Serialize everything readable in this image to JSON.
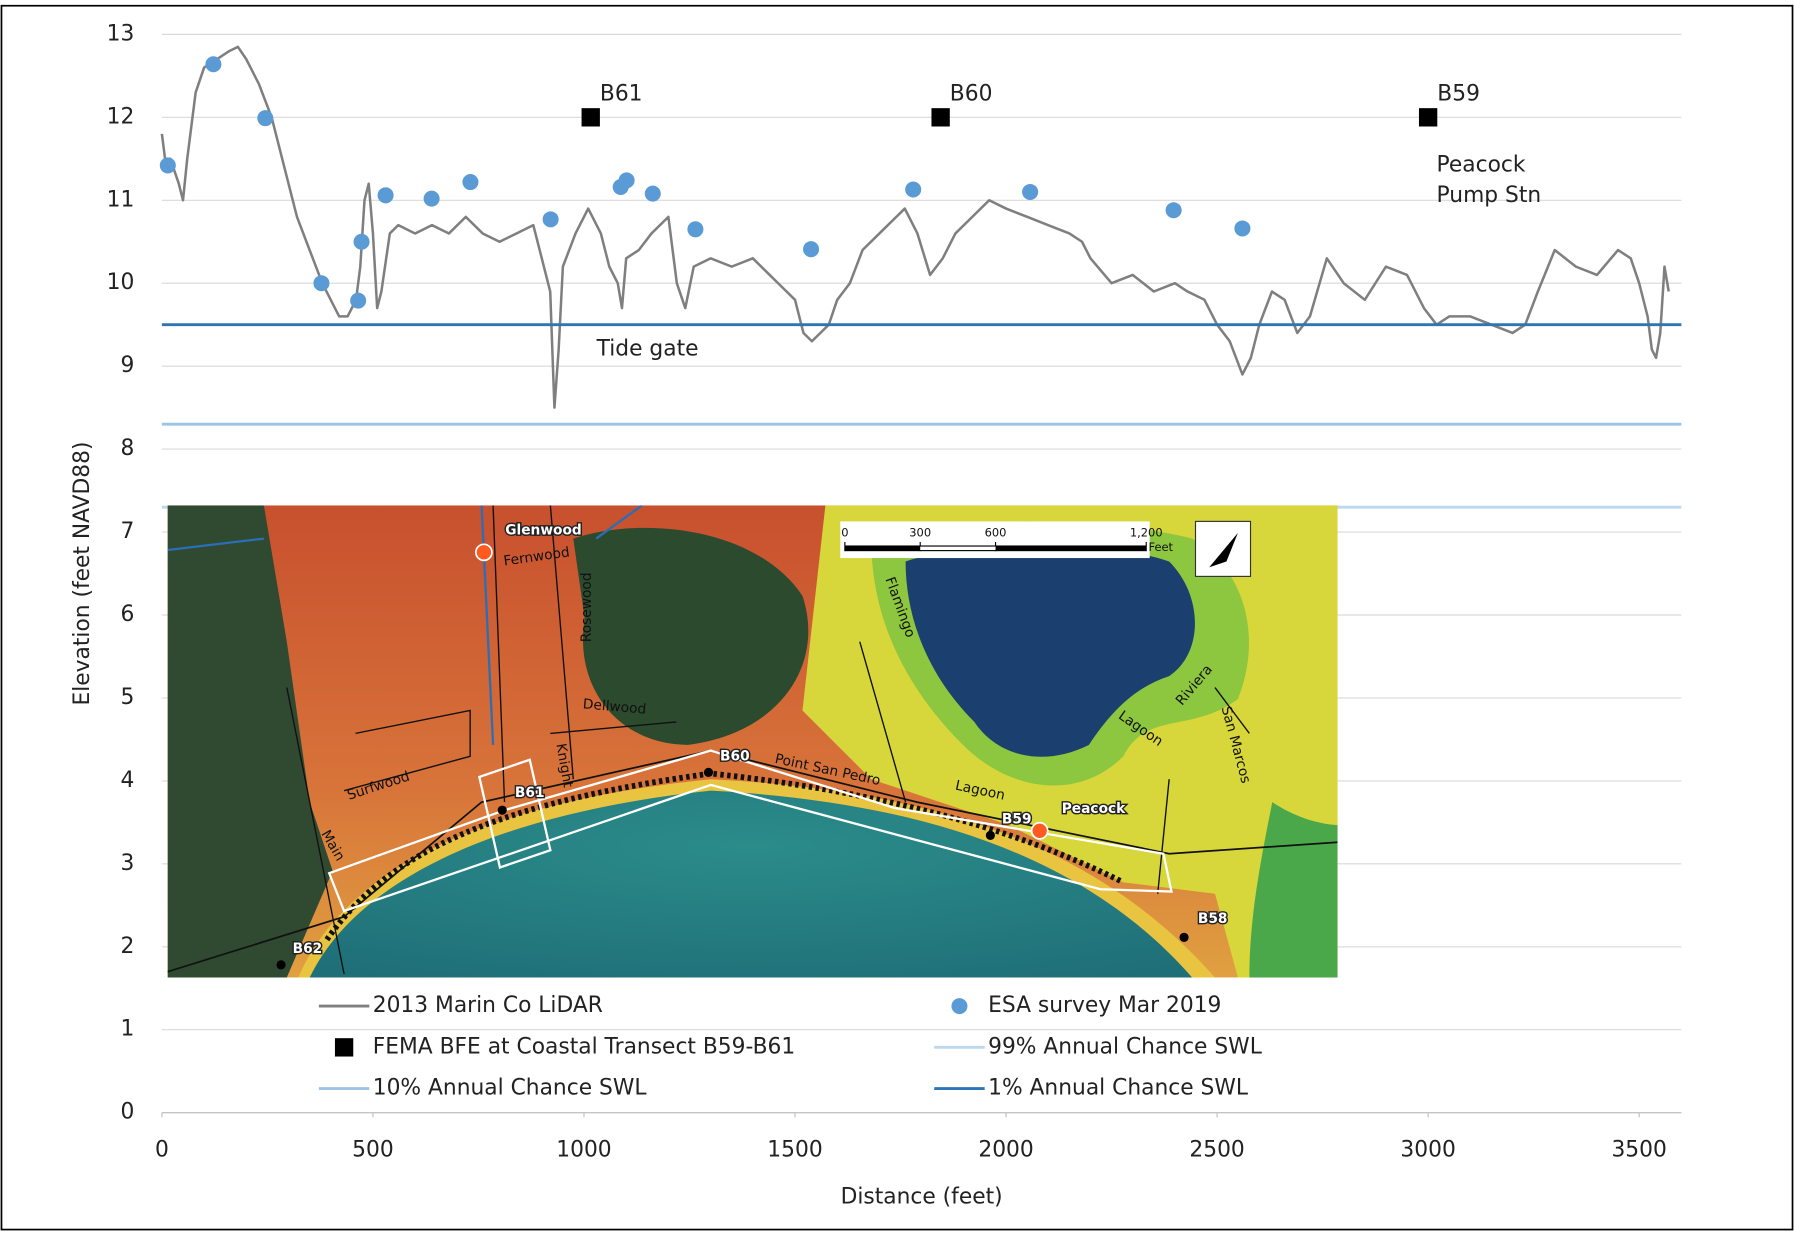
{
  "chart_data": {
    "type": "line",
    "x_label": "Distance (feet)",
    "y_label": "Elevation (feet NAVD88)",
    "xlim": [
      0,
      3600
    ],
    "ylim": [
      0,
      13
    ],
    "xticks": [
      0,
      500,
      1000,
      1500,
      2000,
      2500,
      3000,
      3500
    ],
    "yticks": [
      0,
      1,
      2,
      3,
      4,
      5,
      6,
      7,
      8,
      9,
      10,
      11,
      12,
      13
    ],
    "grid": true,
    "annotations": [
      "Tide gate",
      "Peacock",
      "Pump Stn"
    ],
    "series": [
      {
        "name": "2013 Marin Co LiDAR",
        "kind": "line",
        "color": "#7f7f7f",
        "x": [
          0,
          10,
          20,
          40,
          50,
          60,
          80,
          100,
          130,
          160,
          180,
          200,
          230,
          260,
          290,
          320,
          350,
          380,
          400,
          420,
          440,
          460,
          470,
          480,
          490,
          500,
          510,
          520,
          540,
          560,
          600,
          640,
          680,
          720,
          760,
          800,
          840,
          880,
          900,
          920,
          930,
          940,
          950,
          980,
          1010,
          1040,
          1060,
          1080,
          1090,
          1100,
          1130,
          1160,
          1200,
          1220,
          1240,
          1260,
          1300,
          1350,
          1400,
          1440,
          1460,
          1500,
          1520,
          1540,
          1560,
          1580,
          1600,
          1630,
          1660,
          1700,
          1740,
          1760,
          1790,
          1820,
          1850,
          1880,
          1920,
          1960,
          2000,
          2050,
          2100,
          2150,
          2180,
          2200,
          2250,
          2300,
          2350,
          2400,
          2430,
          2470,
          2500,
          2530,
          2560,
          2580,
          2600,
          2630,
          2660,
          2690,
          2720,
          2760,
          2800,
          2850,
          2900,
          2950,
          2990,
          3020,
          3050,
          3100,
          3150,
          3200,
          3230,
          3260,
          3300,
          3350,
          3400,
          3450,
          3480,
          3500,
          3520,
          3530,
          3540,
          3550,
          3560,
          3570
        ],
        "values": [
          11.8,
          11.4,
          11.5,
          11.2,
          11.0,
          11.5,
          12.3,
          12.6,
          12.7,
          12.8,
          12.85,
          12.7,
          12.4,
          12.0,
          11.4,
          10.8,
          10.4,
          10.0,
          9.8,
          9.6,
          9.6,
          9.8,
          10.2,
          11.0,
          11.2,
          10.6,
          9.7,
          9.9,
          10.6,
          10.7,
          10.6,
          10.7,
          10.6,
          10.8,
          10.6,
          10.5,
          10.6,
          10.7,
          10.3,
          9.9,
          8.5,
          9.2,
          10.2,
          10.6,
          10.9,
          10.6,
          10.2,
          10.0,
          9.7,
          10.3,
          10.4,
          10.6,
          10.8,
          10.0,
          9.7,
          10.2,
          10.3,
          10.2,
          10.3,
          10.1,
          10.0,
          9.8,
          9.4,
          9.3,
          9.4,
          9.5,
          9.8,
          10.0,
          10.4,
          10.6,
          10.8,
          10.9,
          10.6,
          10.1,
          10.3,
          10.6,
          10.8,
          11.0,
          10.9,
          10.8,
          10.7,
          10.6,
          10.5,
          10.3,
          10.0,
          10.1,
          9.9,
          10.0,
          9.9,
          9.8,
          9.5,
          9.3,
          8.9,
          9.1,
          9.5,
          9.9,
          9.8,
          9.4,
          9.6,
          10.3,
          10.0,
          9.8,
          10.2,
          10.1,
          9.7,
          9.5,
          9.6,
          9.6,
          9.5,
          9.4,
          9.5,
          9.9,
          10.4,
          10.2,
          10.1,
          10.4,
          10.3,
          10.0,
          9.6,
          9.2,
          9.1,
          9.4,
          10.2,
          9.9
        ]
      },
      {
        "name": "ESA survey Mar 2019",
        "kind": "scatter",
        "marker": "circle",
        "color": "#5b9bd5",
        "x": [
          14,
          122,
          245,
          378,
          465,
          473,
          530,
          639,
          731,
          921,
          1087,
          1101,
          1163,
          1264,
          1538,
          1780,
          2057,
          2397,
          2560
        ],
        "values": [
          11.42,
          12.64,
          11.99,
          10.0,
          9.79,
          10.5,
          11.06,
          11.02,
          11.22,
          10.77,
          11.16,
          11.24,
          11.08,
          10.65,
          10.41,
          11.13,
          11.1,
          10.88,
          10.66
        ]
      },
      {
        "name": "FEMA BFE at Coastal Transect B59-B61",
        "kind": "scatter",
        "marker": "square",
        "color": "#000000",
        "x": [
          1016,
          1845,
          3000
        ],
        "values": [
          12,
          12,
          12
        ],
        "labels": [
          "B61",
          "B60",
          "B59"
        ]
      },
      {
        "name": "99% Annual Chance SWL",
        "kind": "line",
        "color": "#bdd7ee",
        "x": [
          0,
          3600
        ],
        "values": [
          7.3,
          7.3
        ]
      },
      {
        "name": "10% Annual Chance SWL",
        "kind": "line",
        "color": "#9dc3e6",
        "x": [
          0,
          3600
        ],
        "values": [
          8.3,
          8.3
        ]
      },
      {
        "name": "1% Annual Chance SWL",
        "kind": "line",
        "color": "#2e75b6",
        "x": [
          0,
          3600
        ],
        "values": [
          9.5,
          9.5
        ]
      }
    ]
  },
  "inset_map": {
    "labels": [
      "Glenwood",
      "Fernwood",
      "Rosewood",
      "Dellwood",
      "Knight",
      "Surfwood",
      "Main",
      "B61",
      "B60",
      "B59",
      "Peacock",
      "Point San Pedro",
      "Lagoon",
      "Lagoon",
      "Flamingo",
      "Riviera",
      "San Marcos",
      "B58",
      "B62"
    ],
    "scale_ticks": [
      0,
      300,
      600,
      {
        "value": 1200,
        "label": "1,200"
      }
    ],
    "scale_unit": "Feet"
  }
}
